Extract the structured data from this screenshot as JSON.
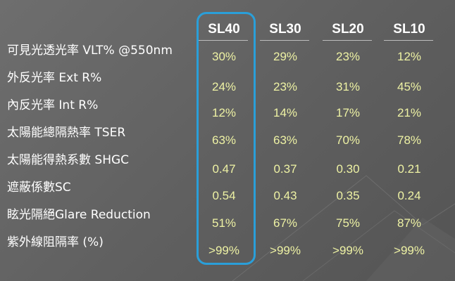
{
  "colors": {
    "background": "#636363",
    "label_text": "#ffffff",
    "value_text": "#eef2a4",
    "highlight_border": "#2a9fd9"
  },
  "table": {
    "rows": [
      {
        "label": "可見光透光率 VLT% @550nm"
      },
      {
        "label": "外反光率 Ext R%"
      },
      {
        "label": "內反光率 Int R%"
      },
      {
        "label": "太陽能總隔熱率 TSER"
      },
      {
        "label": "太陽能得熱系數 SHGC"
      },
      {
        "label": "遮蔽係數SC"
      },
      {
        "label": "眩光隔絕Glare Reduction"
      },
      {
        "label": "紫外線阻隔率 (%)"
      }
    ],
    "columns": [
      {
        "header": "SL40",
        "highlighted": true,
        "values": [
          "30%",
          "24%",
          "12%",
          "63%",
          "0.47",
          "0.54",
          "51%",
          ">99%"
        ]
      },
      {
        "header": "SL30",
        "highlighted": false,
        "values": [
          "29%",
          "23%",
          "14%",
          "63%",
          "0.37",
          "0.43",
          "67%",
          ">99%"
        ]
      },
      {
        "header": "SL20",
        "highlighted": false,
        "values": [
          "23%",
          "31%",
          "17%",
          "70%",
          "0.30",
          "0.35",
          "75%",
          ">99%"
        ]
      },
      {
        "header": "SL10",
        "highlighted": false,
        "values": [
          "12%",
          "45%",
          "21%",
          "78%",
          "0.21",
          "0.24",
          "87%",
          ">99%"
        ]
      }
    ]
  }
}
